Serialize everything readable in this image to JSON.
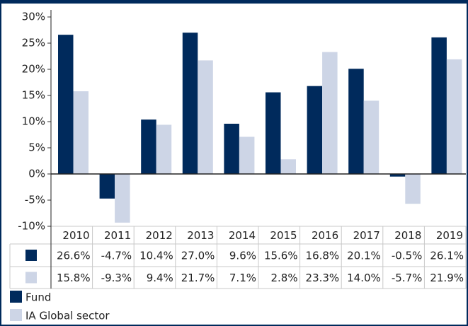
{
  "chart_data": {
    "type": "bar",
    "categories": [
      "2010",
      "2011",
      "2012",
      "2013",
      "2014",
      "2015",
      "2016",
      "2017",
      "2018",
      "2019"
    ],
    "series": [
      {
        "name": "Fund",
        "color": "#002a5c",
        "values": [
          26.6,
          -4.7,
          10.4,
          27.0,
          9.6,
          15.6,
          16.8,
          20.1,
          -0.5,
          26.1
        ],
        "value_labels": [
          "26.6%",
          "-4.7%",
          "10.4%",
          "27.0%",
          "9.6%",
          "15.6%",
          "16.8%",
          "20.1%",
          "-0.5%",
          "26.1%"
        ]
      },
      {
        "name": "IA Global sector",
        "color": "#cdd5e6",
        "values": [
          15.8,
          -9.3,
          9.4,
          21.7,
          7.1,
          2.8,
          23.3,
          14.0,
          -5.7,
          21.9
        ],
        "value_labels": [
          "15.8%",
          "-9.3%",
          "9.4%",
          "21.7%",
          "7.1%",
          "2.8%",
          "23.3%",
          "14.0%",
          "-5.7%",
          "21.9%"
        ]
      }
    ],
    "ylim": [
      -10,
      30
    ],
    "yticks": [
      {
        "value": -10,
        "label": "-10%"
      },
      {
        "value": -5,
        "label": "-5%"
      },
      {
        "value": 0,
        "label": "0%"
      },
      {
        "value": 5,
        "label": "5%"
      },
      {
        "value": 10,
        "label": "10%"
      },
      {
        "value": 15,
        "label": "15%"
      },
      {
        "value": 20,
        "label": "20%"
      },
      {
        "value": 25,
        "label": "25%"
      },
      {
        "value": 30,
        "label": "30%"
      }
    ],
    "grid": false
  }
}
